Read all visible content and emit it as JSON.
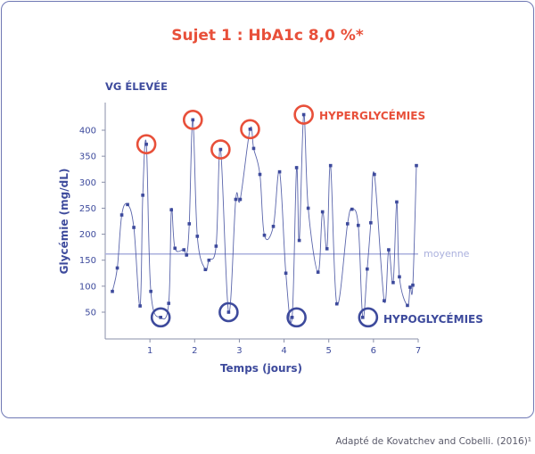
{
  "title": "Sujet 1 : HbA1c 8,0 %*",
  "source": "Adapté de Kovatchev and Cobelli. (2016)¹",
  "colors": {
    "series": "#3d4a9c",
    "hyper": "#e8503a",
    "hypo": "#3d4a9c",
    "mean": "#aab0dd",
    "axis": "#8a8fa8"
  },
  "chart_data": {
    "type": "line",
    "xlabel": "Temps (jours)",
    "ylabel": "Glycémie (mg/dL)",
    "xlim": [
      0,
      7
    ],
    "ylim": [
      0,
      450
    ],
    "xticks": [
      1,
      2,
      3,
      4,
      5,
      6,
      7
    ],
    "yticks": [
      50,
      100,
      150,
      200,
      250,
      300,
      350,
      400
    ],
    "grid": false,
    "annotations": {
      "top_left": "VG ÉLEVÉE",
      "hyper": "HYPERGLYCÉMIES",
      "hypo": "HYPOGLYCÉMIES",
      "mean_label": "moyenne"
    },
    "mean": 162,
    "series": [
      {
        "x": [
          0.16,
          0.27,
          0.37,
          0.5,
          0.64,
          0.78,
          0.84,
          0.92,
          1.02,
          1.24,
          1.42,
          1.48,
          1.56,
          1.76,
          1.82,
          1.88,
          1.96,
          2.06,
          2.24,
          2.32,
          2.48,
          2.58,
          2.76,
          2.92,
          3.02,
          3.24,
          3.32,
          3.46,
          3.56,
          3.76,
          3.9,
          4.04,
          4.18,
          4.28,
          4.34,
          4.44,
          4.54,
          4.76,
          4.86,
          4.96,
          5.04,
          5.18,
          5.42,
          5.52,
          5.66,
          5.76,
          5.86,
          5.94,
          6.02,
          6.24,
          6.34,
          6.44,
          6.52,
          6.58,
          6.76,
          6.82,
          6.88,
          6.96
        ],
        "y": [
          90,
          135,
          237,
          257,
          213,
          62,
          275,
          373,
          90,
          40,
          67,
          247,
          173,
          170,
          160,
          220,
          420,
          196,
          132,
          150,
          177,
          363,
          50,
          267,
          267,
          402,
          365,
          315,
          198,
          215,
          320,
          125,
          40,
          328,
          188,
          430,
          250,
          127,
          243,
          172,
          332,
          66,
          220,
          248,
          217,
          40,
          133,
          222,
          315,
          72,
          170,
          107,
          262,
          118,
          63,
          98,
          102,
          332
        ]
      }
    ],
    "hyper_circles": [
      [
        0.92,
        373
      ],
      [
        1.96,
        420
      ],
      [
        2.58,
        363
      ],
      [
        3.24,
        402
      ],
      [
        4.44,
        430
      ]
    ],
    "hypo_circles": [
      [
        1.24,
        40
      ],
      [
        2.76,
        50
      ],
      [
        4.28,
        40
      ],
      [
        5.88,
        40
      ]
    ]
  }
}
